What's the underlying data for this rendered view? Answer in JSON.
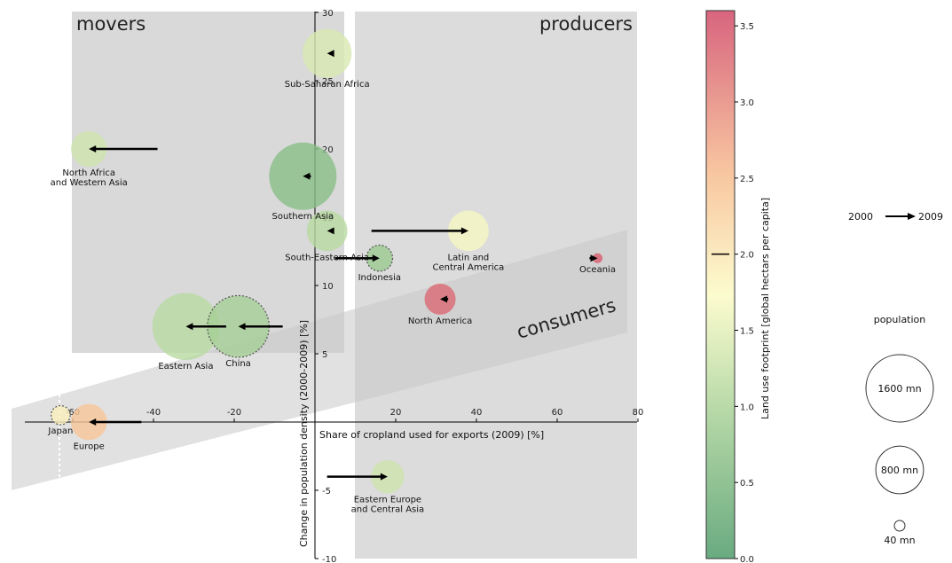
{
  "chart_data": {
    "type": "scatter",
    "title": "",
    "xlabel": "Share of cropland used for exports (2009) [%]",
    "ylabel": "Change in population density (2000-2009) [%]",
    "xlim": [
      -67,
      80
    ],
    "ylim": [
      -10,
      30
    ],
    "xticks": [
      -60,
      -40,
      -20,
      20,
      40,
      60,
      80
    ],
    "yticks": [
      -10,
      -5,
      5,
      10,
      15,
      20,
      25,
      30
    ],
    "grid": false,
    "quadrant_labels": {
      "movers": "movers",
      "producers": "producers",
      "consumers": "consumers"
    },
    "points": [
      {
        "name": "Sub-Saharan Africa",
        "x": 3,
        "y": 27,
        "x_start": 4,
        "population_mn": 850,
        "footprint": 1.4,
        "dotted": false
      },
      {
        "name": "North Africa\nand Western Asia",
        "x": -56,
        "y": 20,
        "x_start": -39,
        "population_mn": 450,
        "footprint": 1.3,
        "dotted": false
      },
      {
        "name": "Southern Asia",
        "x": -3,
        "y": 18,
        "x_start": -1,
        "population_mn": 1600,
        "footprint": 0.6,
        "dotted": false
      },
      {
        "name": "South-Eastern Asia",
        "x": 3,
        "y": 14,
        "x_start": 4,
        "population_mn": 580,
        "footprint": 1.1,
        "dotted": false
      },
      {
        "name": "Latin and\nCentral America",
        "x": 38,
        "y": 14,
        "x_start": 14,
        "population_mn": 580,
        "footprint": 1.7,
        "dotted": false
      },
      {
        "name": "Indonesia",
        "x": 16,
        "y": 12,
        "x_start": 5,
        "population_mn": 240,
        "footprint": 0.8,
        "dotted": true
      },
      {
        "name": "Oceania",
        "x": 70,
        "y": 12,
        "x_start": 68,
        "population_mn": 35,
        "footprint": 3.4,
        "dotted": false
      },
      {
        "name": "North America",
        "x": 31,
        "y": 9,
        "x_start": 33,
        "population_mn": 340,
        "footprint": 3.3,
        "dotted": false
      },
      {
        "name": "Eastern Asia",
        "x": -32,
        "y": 7,
        "x_start": -22,
        "population_mn": 1580,
        "footprint": 1.1,
        "dotted": false
      },
      {
        "name": "China",
        "x": -19,
        "y": 7,
        "x_start": -8,
        "population_mn": 1340,
        "footprint": 0.9,
        "dotted": true
      },
      {
        "name": "Japan",
        "x": -63,
        "y": 0.5,
        "x_start": -63,
        "population_mn": 128,
        "footprint": 1.9,
        "dotted": true
      },
      {
        "name": "Europe",
        "x": -56,
        "y": 0,
        "x_start": -43,
        "population_mn": 460,
        "footprint": 2.4,
        "dotted": false
      },
      {
        "name": "Eastern Europe\nand Central Asia",
        "x": 18,
        "y": -4,
        "x_start": 3,
        "population_mn": 390,
        "footprint": 1.3,
        "dotted": false
      }
    ],
    "colorbar": {
      "label": "Land use footprint [global hectars per capita]",
      "range": [
        0.0,
        3.6
      ],
      "ticks": [
        "0.0",
        "0.5",
        "1.0",
        "1.5",
        "2.0",
        "2.5",
        "3.0",
        "3.5"
      ],
      "marker_value": 2.0
    },
    "legend": {
      "arrow_from": "2000",
      "arrow_to": "2009",
      "population_title": "population",
      "sizes": [
        {
          "label": "1600 mn",
          "value": 1600
        },
        {
          "label": "800 mn",
          "value": 800
        },
        {
          "label": "40 mn",
          "value": 40
        }
      ]
    }
  }
}
